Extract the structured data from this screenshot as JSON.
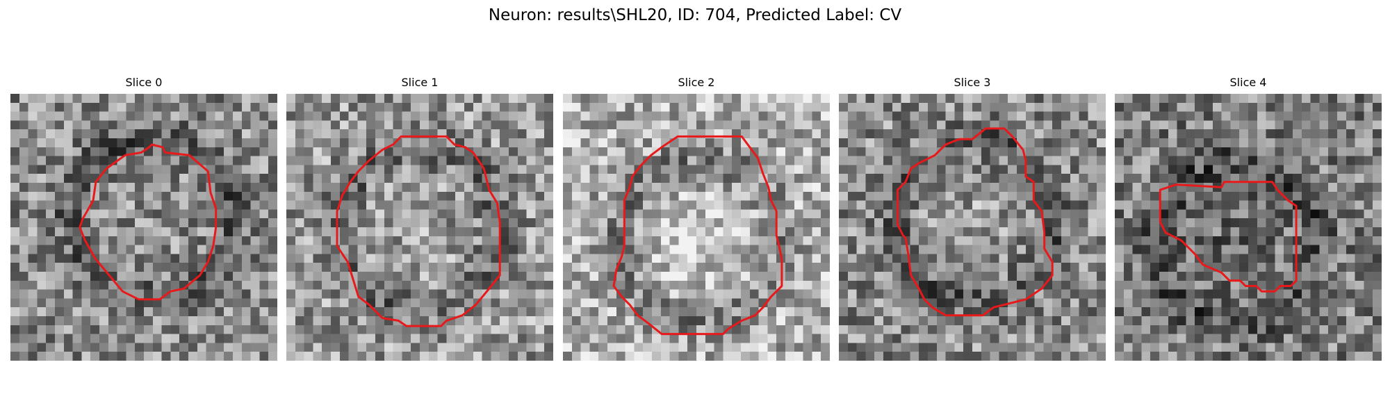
{
  "figure": {
    "title": "Neuron: results\\SHL20, ID: 704, Predicted Label: CV"
  },
  "slices": [
    {
      "title": "Slice 0",
      "seed": 11,
      "center": 0.5,
      "brightness": 0.55,
      "contour": [
        [
          0.53,
          0.19
        ],
        [
          0.57,
          0.2
        ],
        [
          0.58,
          0.22
        ],
        [
          0.67,
          0.23
        ],
        [
          0.74,
          0.29
        ],
        [
          0.75,
          0.37
        ],
        [
          0.77,
          0.43
        ],
        [
          0.77,
          0.5
        ],
        [
          0.76,
          0.57
        ],
        [
          0.74,
          0.63
        ],
        [
          0.71,
          0.68
        ],
        [
          0.65,
          0.73
        ],
        [
          0.6,
          0.74
        ],
        [
          0.56,
          0.77
        ],
        [
          0.48,
          0.77
        ],
        [
          0.42,
          0.74
        ],
        [
          0.37,
          0.68
        ],
        [
          0.32,
          0.62
        ],
        [
          0.28,
          0.55
        ],
        [
          0.26,
          0.5
        ],
        [
          0.27,
          0.47
        ],
        [
          0.31,
          0.4
        ],
        [
          0.32,
          0.33
        ],
        [
          0.36,
          0.28
        ],
        [
          0.43,
          0.23
        ],
        [
          0.49,
          0.22
        ],
        [
          0.52,
          0.2
        ]
      ]
    },
    {
      "title": "Slice 1",
      "seed": 23,
      "center": 0.55,
      "brightness": 0.6,
      "contour": [
        [
          0.43,
          0.16
        ],
        [
          0.6,
          0.16
        ],
        [
          0.63,
          0.19
        ],
        [
          0.67,
          0.2
        ],
        [
          0.7,
          0.22
        ],
        [
          0.74,
          0.28
        ],
        [
          0.76,
          0.36
        ],
        [
          0.79,
          0.41
        ],
        [
          0.8,
          0.48
        ],
        [
          0.8,
          0.68
        ],
        [
          0.76,
          0.73
        ],
        [
          0.71,
          0.79
        ],
        [
          0.66,
          0.83
        ],
        [
          0.6,
          0.85
        ],
        [
          0.58,
          0.87
        ],
        [
          0.45,
          0.87
        ],
        [
          0.42,
          0.85
        ],
        [
          0.36,
          0.84
        ],
        [
          0.31,
          0.79
        ],
        [
          0.27,
          0.76
        ],
        [
          0.23,
          0.63
        ],
        [
          0.19,
          0.57
        ],
        [
          0.19,
          0.44
        ],
        [
          0.21,
          0.38
        ],
        [
          0.24,
          0.33
        ],
        [
          0.27,
          0.29
        ],
        [
          0.31,
          0.25
        ],
        [
          0.36,
          0.21
        ],
        [
          0.4,
          0.19
        ]
      ]
    },
    {
      "title": "Slice 2",
      "seed": 37,
      "center": 0.72,
      "brightness": 0.68,
      "contour": [
        [
          0.43,
          0.16
        ],
        [
          0.67,
          0.16
        ],
        [
          0.7,
          0.2
        ],
        [
          0.73,
          0.24
        ],
        [
          0.75,
          0.3
        ],
        [
          0.77,
          0.35
        ],
        [
          0.78,
          0.4
        ],
        [
          0.8,
          0.44
        ],
        [
          0.8,
          0.53
        ],
        [
          0.81,
          0.57
        ],
        [
          0.82,
          0.62
        ],
        [
          0.82,
          0.72
        ],
        [
          0.78,
          0.76
        ],
        [
          0.75,
          0.8
        ],
        [
          0.72,
          0.83
        ],
        [
          0.67,
          0.85
        ],
        [
          0.62,
          0.88
        ],
        [
          0.6,
          0.9
        ],
        [
          0.37,
          0.9
        ],
        [
          0.32,
          0.86
        ],
        [
          0.28,
          0.83
        ],
        [
          0.25,
          0.79
        ],
        [
          0.22,
          0.76
        ],
        [
          0.19,
          0.72
        ],
        [
          0.2,
          0.66
        ],
        [
          0.22,
          0.61
        ],
        [
          0.23,
          0.57
        ],
        [
          0.23,
          0.48
        ],
        [
          0.23,
          0.4
        ],
        [
          0.25,
          0.35
        ],
        [
          0.26,
          0.31
        ],
        [
          0.29,
          0.27
        ],
        [
          0.33,
          0.23
        ],
        [
          0.37,
          0.2
        ]
      ]
    },
    {
      "title": "Slice 3",
      "seed": 51,
      "center": 0.6,
      "brightness": 0.55,
      "contour": [
        [
          0.55,
          0.13
        ],
        [
          0.62,
          0.13
        ],
        [
          0.65,
          0.16
        ],
        [
          0.69,
          0.21
        ],
        [
          0.7,
          0.25
        ],
        [
          0.7,
          0.31
        ],
        [
          0.73,
          0.33
        ],
        [
          0.73,
          0.4
        ],
        [
          0.76,
          0.44
        ],
        [
          0.77,
          0.52
        ],
        [
          0.77,
          0.58
        ],
        [
          0.8,
          0.63
        ],
        [
          0.8,
          0.68
        ],
        [
          0.76,
          0.73
        ],
        [
          0.7,
          0.77
        ],
        [
          0.62,
          0.79
        ],
        [
          0.58,
          0.8
        ],
        [
          0.54,
          0.83
        ],
        [
          0.4,
          0.83
        ],
        [
          0.35,
          0.8
        ],
        [
          0.32,
          0.77
        ],
        [
          0.3,
          0.73
        ],
        [
          0.27,
          0.68
        ],
        [
          0.26,
          0.6
        ],
        [
          0.25,
          0.54
        ],
        [
          0.24,
          0.53
        ],
        [
          0.22,
          0.49
        ],
        [
          0.22,
          0.36
        ],
        [
          0.25,
          0.33
        ],
        [
          0.27,
          0.28
        ],
        [
          0.3,
          0.26
        ],
        [
          0.36,
          0.23
        ],
        [
          0.4,
          0.19
        ],
        [
          0.45,
          0.17
        ],
        [
          0.5,
          0.17
        ]
      ]
    },
    {
      "title": "Slice 4",
      "seed": 67,
      "center": 0.35,
      "brightness": 0.5,
      "contour": [
        [
          0.17,
          0.36
        ],
        [
          0.23,
          0.34
        ],
        [
          0.4,
          0.35
        ],
        [
          0.41,
          0.33
        ],
        [
          0.59,
          0.33
        ],
        [
          0.61,
          0.36
        ],
        [
          0.65,
          0.4
        ],
        [
          0.68,
          0.42
        ],
        [
          0.68,
          0.7
        ],
        [
          0.66,
          0.72
        ],
        [
          0.62,
          0.72
        ],
        [
          0.6,
          0.74
        ],
        [
          0.55,
          0.74
        ],
        [
          0.53,
          0.72
        ],
        [
          0.49,
          0.72
        ],
        [
          0.47,
          0.7
        ],
        [
          0.43,
          0.7
        ],
        [
          0.4,
          0.67
        ],
        [
          0.33,
          0.64
        ],
        [
          0.3,
          0.6
        ],
        [
          0.25,
          0.55
        ],
        [
          0.19,
          0.52
        ],
        [
          0.17,
          0.48
        ]
      ]
    }
  ],
  "contour_color": "#e8191b",
  "grid_size": 30
}
